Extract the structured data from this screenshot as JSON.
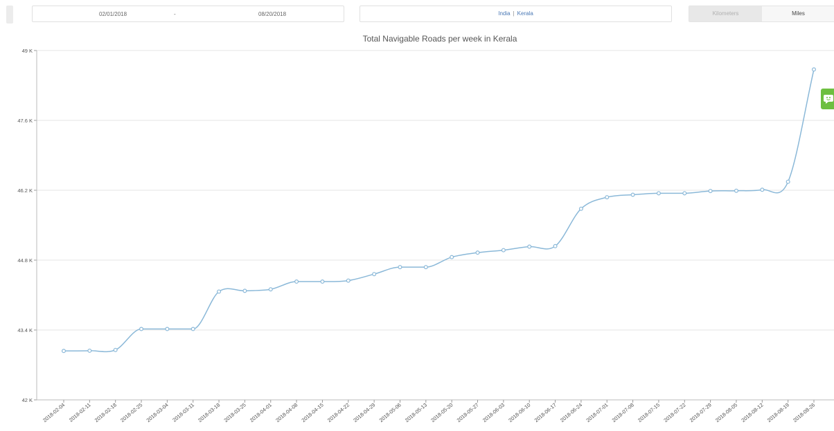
{
  "filters": {
    "start_date": "02/01/2018",
    "separator": "-",
    "end_date": "08/20/2018",
    "country": "India",
    "region": "Kerala",
    "location_separator": "|"
  },
  "units": {
    "kilometers_label": "Kilometers",
    "miles_label": "Miles",
    "selected": "Miles"
  },
  "chat_widget": {
    "icon": "chat-bubble-icon",
    "color": "#6dbf40"
  },
  "chart_data": {
    "type": "line",
    "title": "Total Navigable Roads per week in Kerala",
    "xlabel": "",
    "ylabel": "",
    "ylim": [
      42000,
      49000
    ],
    "y_ticks": [
      42000,
      43400,
      44800,
      46200,
      47600,
      49000
    ],
    "y_tick_labels": [
      "42 K",
      "43.4 K",
      "44.8 K",
      "46.2 K",
      "47.6 K",
      "49 K"
    ],
    "categories": [
      "2018-02-04",
      "2018-02-11",
      "2018-02-18",
      "2018-02-25",
      "2018-03-04",
      "2018-03-11",
      "2018-03-18",
      "2018-03-25",
      "2018-04-01",
      "2018-04-08",
      "2018-04-15",
      "2018-04-22",
      "2018-04-29",
      "2018-05-06",
      "2018-05-13",
      "2018-05-20",
      "2018-05-27",
      "2018-06-03",
      "2018-06-10",
      "2018-06-17",
      "2018-06-24",
      "2018-07-01",
      "2018-07-08",
      "2018-07-15",
      "2018-07-22",
      "2018-07-29",
      "2018-08-05",
      "2018-08-12",
      "2018-08-19",
      "2018-08-26"
    ],
    "series": [
      {
        "color": "#8ab8d8",
        "values": [
          42980,
          42985,
          43000,
          43420,
          43420,
          43420,
          44170,
          44185,
          44215,
          44370,
          44370,
          44390,
          44520,
          44660,
          44660,
          44860,
          44950,
          45000,
          45070,
          45080,
          45830,
          46060,
          46110,
          46140,
          46140,
          46185,
          46190,
          46210,
          46370,
          48620
        ]
      }
    ],
    "grid": true,
    "legend": "none"
  }
}
